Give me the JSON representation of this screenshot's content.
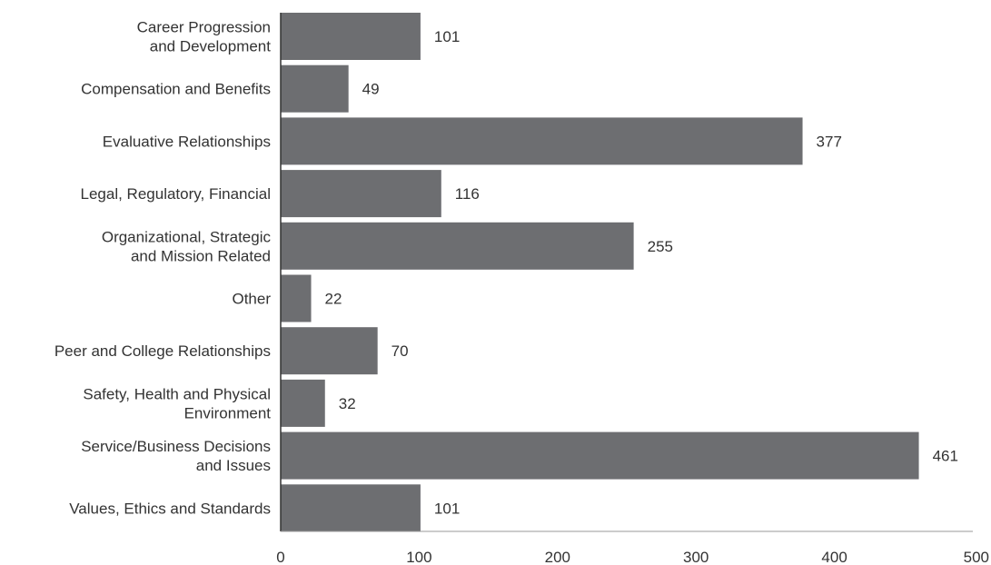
{
  "chart_data": {
    "type": "bar",
    "orientation": "horizontal",
    "categories": [
      [
        "Career Progression",
        "and Development"
      ],
      [
        "Compensation and Benefits"
      ],
      [
        "Evaluative Relationships"
      ],
      [
        "Legal, Regulatory, Financial"
      ],
      [
        "Organizational, Strategic",
        "and Mission Related"
      ],
      [
        "Other"
      ],
      [
        "Peer and College Relationships"
      ],
      [
        "Safety, Health and Physical",
        "Environment"
      ],
      [
        "Service/Business Decisions",
        "and Issues"
      ],
      [
        "Values, Ethics and Standards"
      ]
    ],
    "values": [
      101,
      49,
      377,
      116,
      255,
      22,
      70,
      32,
      461,
      101
    ],
    "value_labels": [
      "101",
      "49",
      "377",
      "116",
      "255",
      "22",
      "70",
      "32",
      "461",
      "101"
    ],
    "xlim": [
      0,
      500
    ],
    "xticks": [
      0,
      100,
      200,
      300,
      400,
      500
    ],
    "xtick_labels": [
      "0",
      "100",
      "200",
      "300",
      "400",
      "500"
    ],
    "grid": false,
    "bar_color": "#6d6e71",
    "axis_color": "#999999",
    "text_color": "#333333"
  }
}
